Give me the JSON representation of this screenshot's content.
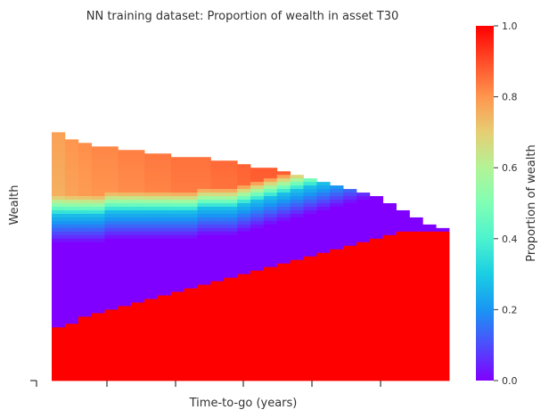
{
  "chart_data": {
    "type": "heatmap",
    "title": "NN training dataset: Proportion of wealth in asset T30",
    "xlabel": "Time-to-go (years)",
    "ylabel": "Wealth",
    "colorbar": {
      "label": "Proportion of wealth",
      "colormap": "rainbow",
      "ticks": [
        "0.0",
        "0.2",
        "0.4",
        "0.6",
        "0.8",
        "1.0"
      ],
      "range": [
        0.0,
        1.0
      ]
    },
    "x_tick_labels_shown": false,
    "y_tick_labels_shown": false,
    "n_time_columns": 30,
    "n_wealth_bins": 100,
    "description_of_values": "Each time column shows proportion in T30 vs wealth: low wealth = 1.0, middle band = 0.0, band around 0.25-0.3 (blue-cyan), high wealth = 0.8-0.9.",
    "columns": [
      {
        "t": 0,
        "top": 30,
        "full_below": 85,
        "zero_below": 77,
        "trans_mid": 57,
        "high_val": 0.78
      },
      {
        "t": 1,
        "top": 32,
        "full_below": 84,
        "zero_below": 78,
        "trans_mid": 57,
        "high_val": 0.8
      },
      {
        "t": 2,
        "top": 33,
        "full_below": 82,
        "zero_below": 77,
        "trans_mid": 57,
        "high_val": 0.81
      },
      {
        "t": 3,
        "top": 34,
        "full_below": 81,
        "zero_below": 77,
        "trans_mid": 57,
        "high_val": 0.82
      },
      {
        "t": 4,
        "top": 34,
        "full_below": 80,
        "zero_below": 76,
        "trans_mid": 56,
        "high_val": 0.82
      },
      {
        "t": 5,
        "top": 35,
        "full_below": 79,
        "zero_below": 76,
        "trans_mid": 56,
        "high_val": 0.83
      },
      {
        "t": 6,
        "top": 35,
        "full_below": 78,
        "zero_below": 76,
        "trans_mid": 56,
        "high_val": 0.83
      },
      {
        "t": 7,
        "top": 36,
        "full_below": 77,
        "zero_below": 75,
        "trans_mid": 56,
        "high_val": 0.84
      },
      {
        "t": 8,
        "top": 36,
        "full_below": 76,
        "zero_below": 75,
        "trans_mid": 56,
        "high_val": 0.84
      },
      {
        "t": 9,
        "top": 37,
        "full_below": 75,
        "zero_below": 74,
        "trans_mid": 56,
        "high_val": 0.85
      },
      {
        "t": 10,
        "top": 37,
        "full_below": 74,
        "zero_below": 74,
        "trans_mid": 56,
        "high_val": 0.85
      },
      {
        "t": 11,
        "top": 37,
        "full_below": 73,
        "zero_below": 73,
        "trans_mid": 55,
        "high_val": 0.85
      },
      {
        "t": 12,
        "top": 38,
        "full_below": 72,
        "zero_below": 73,
        "trans_mid": 55,
        "high_val": 0.86
      },
      {
        "t": 13,
        "top": 38,
        "full_below": 71,
        "zero_below": 73,
        "trans_mid": 55,
        "high_val": 0.86
      },
      {
        "t": 14,
        "top": 39,
        "full_below": 70,
        "zero_below": 73,
        "trans_mid": 54,
        "high_val": 0.87
      },
      {
        "t": 15,
        "top": 40,
        "full_below": 69,
        "zero_below": 73,
        "trans_mid": 53,
        "high_val": 0.88
      },
      {
        "t": 16,
        "top": 40,
        "full_below": 68,
        "zero_below": 73,
        "trans_mid": 52,
        "high_val": 0.88
      },
      {
        "t": 17,
        "top": 41,
        "full_below": 67,
        "zero_below": 73,
        "trans_mid": 51,
        "high_val": 0.88
      },
      {
        "t": 18,
        "top": 42,
        "full_below": 66,
        "zero_below": 73,
        "trans_mid": 50,
        "high_val": 0.88
      },
      {
        "t": 19,
        "top": 43,
        "full_below": 65,
        "zero_below": 73,
        "trans_mid": 49,
        "high_val": 0.88
      },
      {
        "t": 20,
        "top": 44,
        "full_below": 64,
        "zero_below": 74,
        "trans_mid": 48,
        "high_val": 0.88
      },
      {
        "t": 21,
        "top": 45,
        "full_below": 63,
        "zero_below": 74,
        "trans_mid": 47,
        "high_val": 0.88
      },
      {
        "t": 22,
        "top": 46,
        "full_below": 62,
        "zero_below": 74,
        "trans_mid": 46,
        "high_val": 0.88
      },
      {
        "t": 23,
        "top": 47,
        "full_below": 61,
        "zero_below": 74,
        "trans_mid": 45,
        "high_val": 0.88
      },
      {
        "t": 24,
        "top": 48,
        "full_below": 60,
        "zero_below": 74,
        "trans_mid": 44,
        "high_val": 0.88
      },
      {
        "t": 25,
        "top": 50,
        "full_below": 59,
        "zero_below": 74,
        "trans_mid": 43,
        "high_val": 0.88
      },
      {
        "t": 26,
        "top": 52,
        "full_below": 58,
        "zero_below": 74,
        "trans_mid": 42,
        "high_val": 0.88
      },
      {
        "t": 27,
        "top": 54,
        "full_below": 58,
        "zero_below": 75,
        "trans_mid": 41,
        "high_val": 0.88
      },
      {
        "t": 28,
        "top": 56,
        "full_below": 58,
        "zero_below": 75,
        "trans_mid": 40,
        "high_val": 0.88
      },
      {
        "t": 29,
        "top": 57,
        "full_below": 58,
        "zero_below": 75,
        "trans_mid": 39,
        "high_val": 0.88
      }
    ]
  }
}
